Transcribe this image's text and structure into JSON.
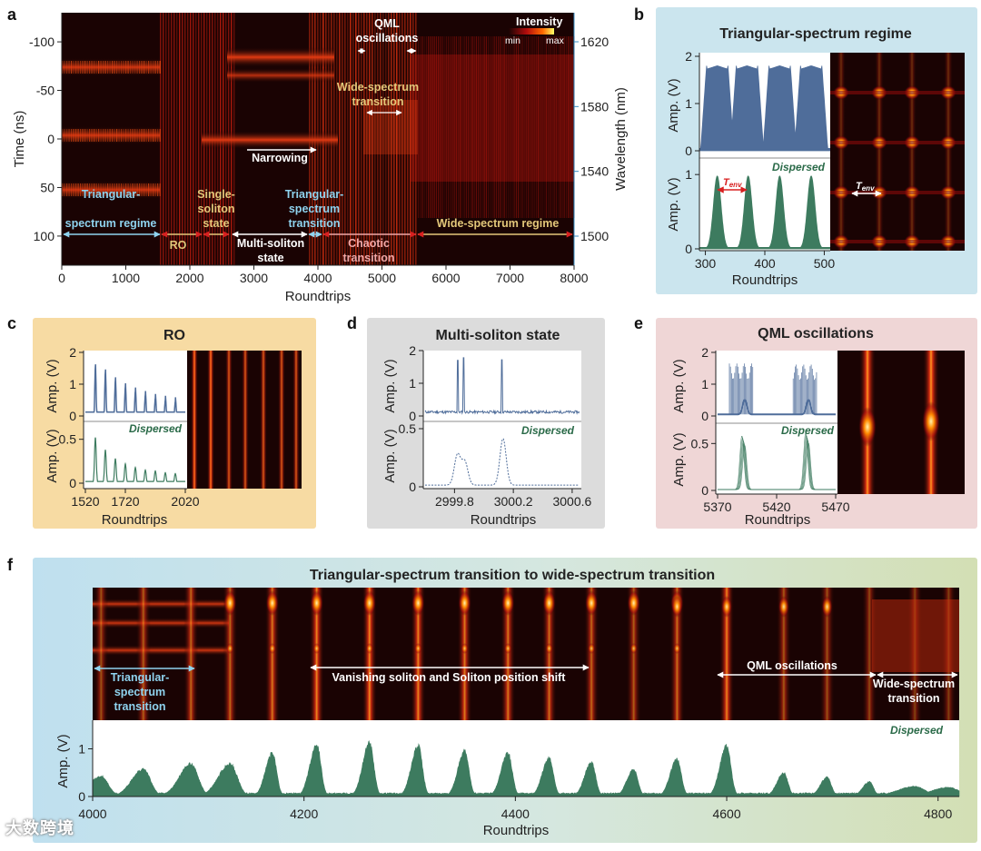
{
  "colors": {
    "heat_bg": "#1a0303",
    "heat_hot": "#ff6a00",
    "blue_trace": "#4f6d9a",
    "green_trace": "#3d7b5f",
    "panel_b_bg": "#cbe5ee",
    "panel_c_bg": "#f7dba3",
    "panel_d_bg": "#dcdcdc",
    "panel_e_bg": "#efd6d6",
    "wavelength_axis": "#3b8fc4",
    "annotation_blue": "#8fd3ef",
    "annotation_gold": "#e4c87a",
    "annotation_white": "#ffffff"
  },
  "panel_labels": {
    "a": "a",
    "b": "b",
    "c": "c",
    "d": "d",
    "e": "e",
    "f": "f"
  },
  "watermark": "大数跨境",
  "chart_data": [
    {
      "id": "a",
      "type": "heatmap",
      "xlabel": "Roundtrips",
      "ylabel": "Time (ns)",
      "y2label": "Wavelength (nm)",
      "xlim": [
        0,
        8000
      ],
      "ylim": [
        -130,
        130
      ],
      "xticks": [
        0,
        1000,
        2000,
        3000,
        4000,
        5000,
        6000,
        7000,
        8000
      ],
      "yticks": [
        -100,
        -50,
        0,
        50,
        100
      ],
      "y2ticks": [
        1620,
        1580,
        1540,
        1500
      ],
      "colorbar": {
        "title": "Intensity",
        "min_label": "min",
        "max_label": "max"
      },
      "annotations": [
        {
          "text": "Triangular-",
          "color": "blue"
        },
        {
          "text": "spectrum regime",
          "color": "blue"
        },
        {
          "text": "RO",
          "color": "gold"
        },
        {
          "text": "Single-",
          "color": "gold"
        },
        {
          "text": "soliton",
          "color": "gold"
        },
        {
          "text": "state",
          "color": "gold"
        },
        {
          "text": "Multi-soliton",
          "color": "white"
        },
        {
          "text": "state",
          "color": "white"
        },
        {
          "text": "Narrowing",
          "color": "white"
        },
        {
          "text": "Triangular-",
          "color": "blue"
        },
        {
          "text": "spectrum",
          "color": "blue"
        },
        {
          "text": "transition",
          "color": "blue"
        },
        {
          "text": "Chaotic",
          "color": "pink"
        },
        {
          "text": "transition",
          "color": "pink"
        },
        {
          "text": "QML",
          "color": "white"
        },
        {
          "text": "oscillations",
          "color": "white"
        },
        {
          "text": "Wide-spectrum",
          "color": "gold"
        },
        {
          "text": "transition",
          "color": "gold"
        },
        {
          "text": "Wide-spectrum regime",
          "color": "gold"
        }
      ]
    },
    {
      "id": "b",
      "type": "line",
      "title": "Triangular-spectrum regime",
      "xlabel": "Roundtrips",
      "ylabel": "Amp. (V)",
      "xlim": [
        290,
        510
      ],
      "xticks": [
        300,
        400,
        500
      ],
      "top": {
        "ylim": [
          0,
          2
        ],
        "yticks": [
          0,
          1,
          2
        ],
        "envelope_peaks": [
          320,
          370,
          425,
          478
        ]
      },
      "bottom": {
        "ylim": [
          0,
          1.1
        ],
        "yticks": [
          0,
          1
        ],
        "label": "Dispersed",
        "peaks": [
          320,
          372,
          425,
          478
        ],
        "peak_values": [
          0.98,
          0.98,
          0.98,
          0.98
        ]
      },
      "marker": "T",
      "marker_sub": "env"
    },
    {
      "id": "c",
      "type": "line",
      "title": "RO",
      "xlabel": "Roundtrips",
      "ylabel": "Amp. (V)",
      "xlim": [
        1520,
        2020
      ],
      "xticks": [
        1520,
        1720,
        2020
      ],
      "top": {
        "ylim": [
          0,
          2
        ],
        "yticks": [
          0,
          1,
          2
        ],
        "peaks": [
          1570,
          1620,
          1670,
          1720,
          1770,
          1820,
          1870,
          1920,
          1970
        ],
        "peak_values": [
          1.55,
          1.38,
          1.12,
          0.92,
          0.78,
          0.66,
          0.56,
          0.5,
          0.45
        ]
      },
      "bottom": {
        "ylim": [
          0,
          0.6
        ],
        "yticks": [
          0,
          0.5
        ],
        "label": "Dispersed",
        "peak_values": [
          0.52,
          0.38,
          0.28,
          0.22,
          0.18,
          0.15,
          0.14,
          0.12,
          0.11
        ]
      }
    },
    {
      "id": "d",
      "type": "line",
      "title": "Multi-soliton state",
      "xlabel": "Roundtrips",
      "ylabel": "Amp. (V)",
      "xlim": [
        2999.6,
        3000.65
      ],
      "xticks": [
        2999.8,
        3000.2,
        3000.6
      ],
      "tick_labels": [
        "2999.8",
        "3000.2",
        "3000.6"
      ],
      "top": {
        "ylim": [
          0,
          2
        ],
        "yticks": [
          0,
          1,
          2
        ],
        "spike_x": [
          2999.82,
          2999.86,
          3000.12
        ],
        "spike_values": [
          1.7,
          1.78,
          1.72
        ]
      },
      "bottom": {
        "ylim": [
          0,
          0.5
        ],
        "yticks": [
          0,
          0.5
        ],
        "label": "Dispersed",
        "peak_x": [
          2999.82,
          2999.87,
          3000.13
        ],
        "peak_values": [
          0.26,
          0.2,
          0.4
        ]
      }
    },
    {
      "id": "e",
      "type": "line",
      "title": "QML oscillations",
      "xlabel": "Roundtrips",
      "ylabel": "Amp. (V)",
      "xlim": [
        5370,
        5470
      ],
      "xticks": [
        5370,
        5420,
        5470
      ],
      "top": {
        "ylim": [
          0,
          2
        ],
        "yticks": [
          0,
          1,
          2
        ],
        "burst_centers": [
          5393,
          5447
        ],
        "burst_values": [
          1.65,
          1.62
        ]
      },
      "bottom": {
        "ylim": [
          0,
          0.6
        ],
        "yticks": [
          0,
          0.5
        ],
        "label": "Dispersed",
        "peak_values": [
          0.52,
          0.55
        ]
      }
    },
    {
      "id": "f",
      "type": "area",
      "title": "Triangular-spectrum transition to wide-spectrum transition",
      "xlabel": "Roundtrips",
      "ylabel": "Amp. (V)",
      "xlim": [
        4000,
        4820
      ],
      "ylim": [
        0,
        1.6
      ],
      "xticks": [
        4000,
        4200,
        4400,
        4600,
        4800
      ],
      "yticks": [
        0,
        1
      ],
      "label": "Dispersed",
      "peak_x": [
        4008,
        4048,
        4093,
        4130,
        4170,
        4212,
        4262,
        4308,
        4352,
        4393,
        4432,
        4472,
        4512,
        4553,
        4600,
        4654,
        4695,
        4735,
        4778,
        4810
      ],
      "peak_values": [
        0.45,
        0.6,
        0.72,
        0.72,
        0.95,
        1.15,
        1.18,
        1.12,
        1.0,
        0.95,
        0.85,
        0.75,
        0.6,
        0.82,
        1.12,
        0.52,
        0.42,
        0.32,
        0.22,
        0.2
      ],
      "annotations": [
        {
          "text": "Triangular-",
          "color": "blue"
        },
        {
          "text": "spectrum",
          "color": "blue"
        },
        {
          "text": "transition",
          "color": "blue"
        },
        {
          "text": "Vanishing soliton and Soliton position shift",
          "color": "white"
        },
        {
          "text": "QML oscillations",
          "color": "white"
        },
        {
          "text": "Wide-spectrum",
          "color": "white"
        },
        {
          "text": "transition",
          "color": "white"
        }
      ]
    }
  ]
}
